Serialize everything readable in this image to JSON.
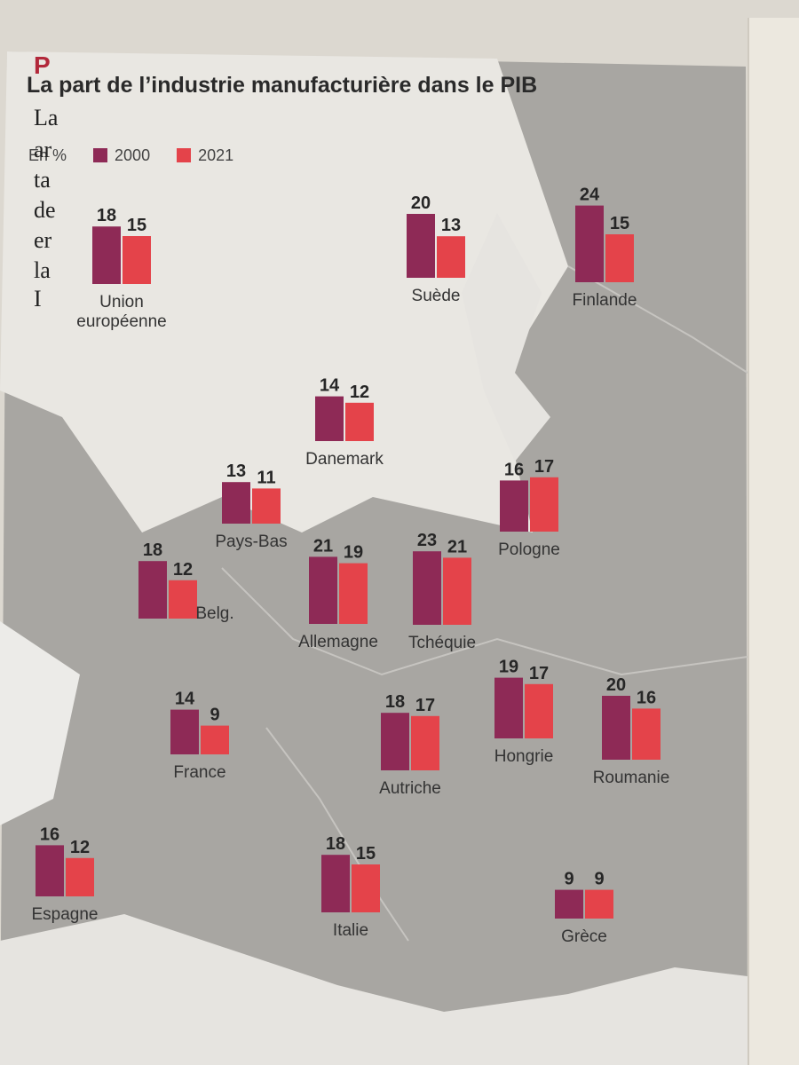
{
  "chart_data": {
    "type": "bar",
    "title": "La part de l’industrie manufacturière dans le PIB",
    "unit": "En %",
    "series": [
      {
        "name": "2000",
        "color": "#8e2a56"
      },
      {
        "name": "2021",
        "color": "#e4434a"
      }
    ],
    "categories": [
      "Union européenne",
      "Suède",
      "Finlande",
      "Danemark",
      "Pays-Bas",
      "Pologne",
      "Belg.",
      "Allemagne",
      "Tchéquie",
      "France",
      "Autriche",
      "Hongrie",
      "Roumanie",
      "Espagne",
      "Italie",
      "Grèce"
    ],
    "values_2000": [
      18,
      20,
      24,
      14,
      13,
      16,
      18,
      21,
      23,
      14,
      18,
      19,
      20,
      16,
      18,
      9
    ],
    "values_2021": [
      15,
      13,
      15,
      12,
      11,
      17,
      12,
      19,
      21,
      9,
      17,
      17,
      16,
      12,
      15,
      9
    ],
    "country_labels": [
      [
        "Union",
        "européenne"
      ],
      [
        "Suède"
      ],
      [
        "Finlande"
      ],
      [
        "Danemark"
      ],
      [
        "Pays-Bas"
      ],
      [
        "Pologne"
      ],
      [
        "Belg."
      ],
      [
        "Allemagne"
      ],
      [
        "Tchéquie"
      ],
      [
        "France"
      ],
      [
        "Autriche"
      ],
      [
        "Hongrie"
      ],
      [
        "Roumanie"
      ],
      [
        "Espagne"
      ],
      [
        "Italie"
      ],
      [
        "Grèce"
      ]
    ]
  },
  "side_text": {
    "head": "P",
    "fragments": [
      "La",
      "ar",
      "ta",
      "de",
      "er",
      "la",
      "I"
    ]
  }
}
